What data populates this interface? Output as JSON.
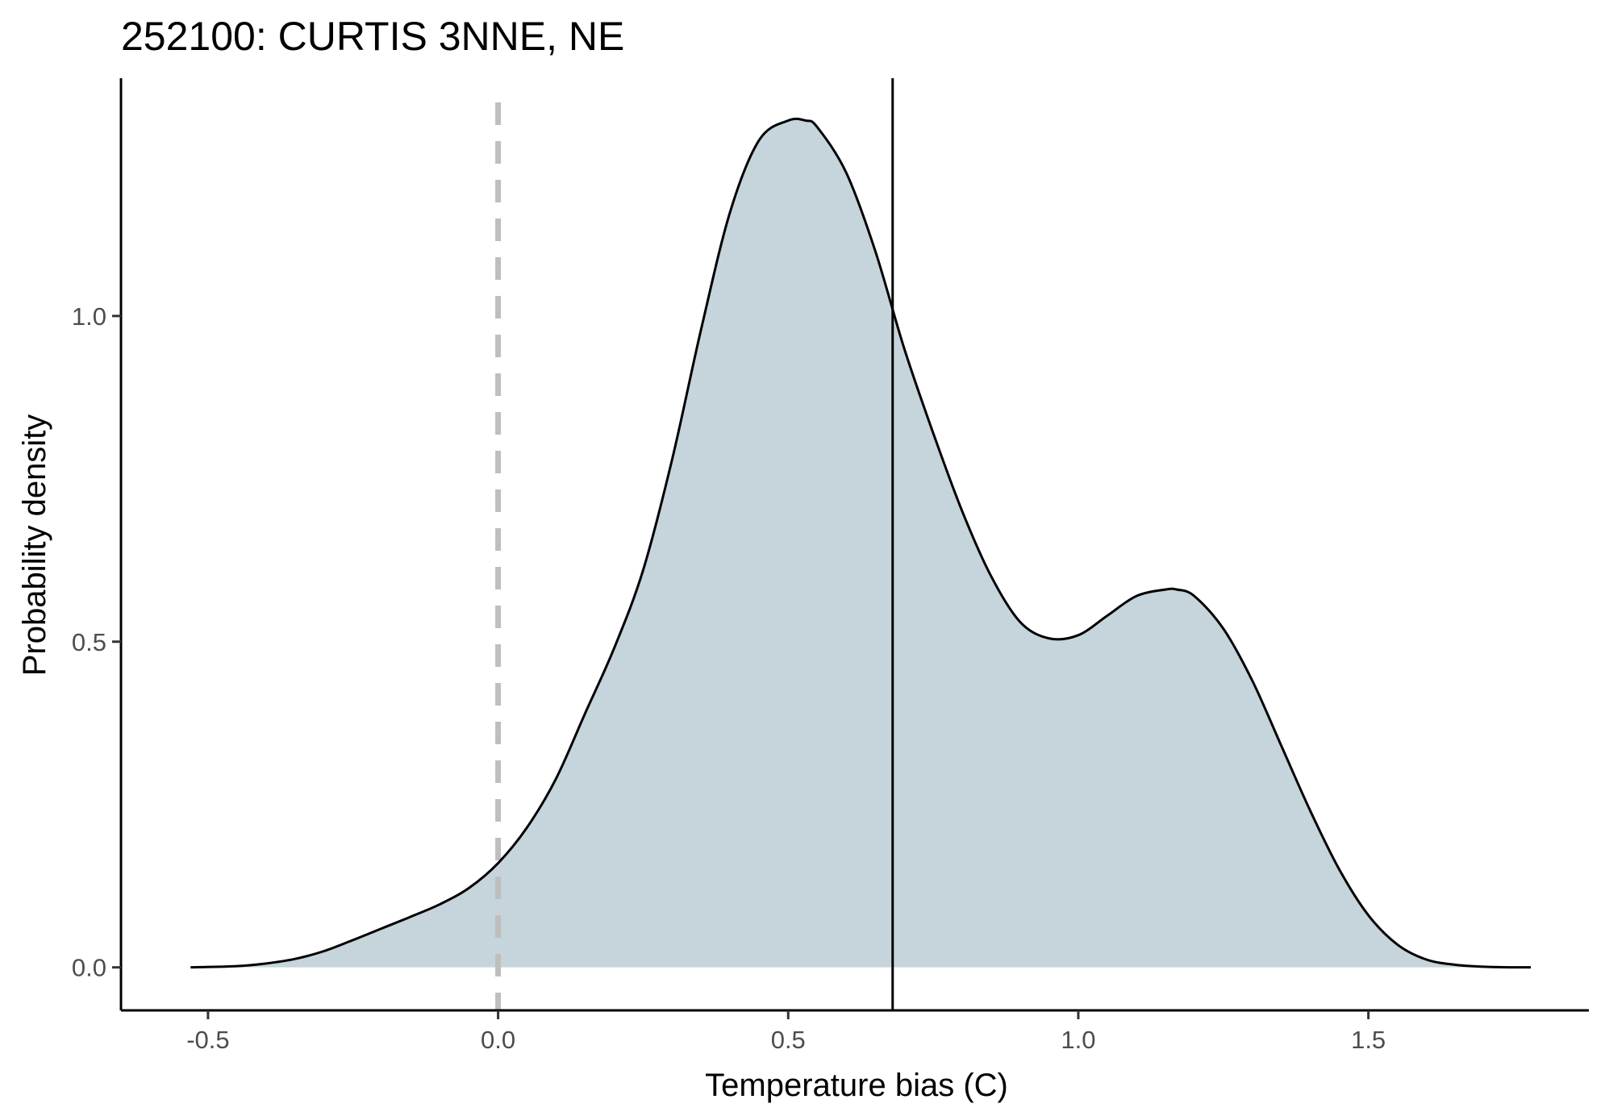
{
  "chart_data": {
    "type": "area",
    "title": "252100: CURTIS 3NNE, NE",
    "xlabel": "Temperature bias (C)",
    "ylabel": "Probability density",
    "xlim": [
      -0.65,
      1.88
    ],
    "ylim": [
      -0.066,
      1.365
    ],
    "x_ticks": [
      -0.5,
      0.0,
      0.5,
      1.0,
      1.5
    ],
    "x_tick_labels": [
      "-0.5",
      "0.0",
      "0.5",
      "1.0",
      "1.5"
    ],
    "y_ticks": [
      0.0,
      0.5,
      1.0
    ],
    "y_tick_labels": [
      "0.0",
      "0.5",
      "1.0"
    ],
    "grid": false,
    "fill_color": "#c6d4db",
    "line_color": "#000000",
    "reference_lines": [
      {
        "x": 0.0,
        "style": "dashed",
        "color": "#bebebe"
      },
      {
        "x": 0.68,
        "style": "solid",
        "color": "#000000"
      }
    ],
    "series": [
      {
        "x": [
          -0.53,
          -0.45,
          -0.4,
          -0.35,
          -0.3,
          -0.25,
          -0.2,
          -0.15,
          -0.1,
          -0.05,
          0.0,
          0.05,
          0.1,
          0.15,
          0.2,
          0.25,
          0.3,
          0.35,
          0.4,
          0.45,
          0.5,
          0.53,
          0.55,
          0.6,
          0.65,
          0.7,
          0.75,
          0.8,
          0.85,
          0.9,
          0.95,
          1.0,
          1.05,
          1.1,
          1.15,
          1.17,
          1.2,
          1.25,
          1.3,
          1.35,
          1.4,
          1.45,
          1.5,
          1.55,
          1.6,
          1.65,
          1.7,
          1.75,
          1.78
        ],
        "y": [
          0.0,
          0.002,
          0.006,
          0.013,
          0.025,
          0.042,
          0.06,
          0.078,
          0.097,
          0.122,
          0.16,
          0.215,
          0.29,
          0.39,
          0.49,
          0.61,
          0.78,
          0.98,
          1.16,
          1.27,
          1.3,
          1.3,
          1.29,
          1.22,
          1.1,
          0.95,
          0.82,
          0.7,
          0.6,
          0.53,
          0.505,
          0.51,
          0.54,
          0.57,
          0.58,
          0.58,
          0.57,
          0.52,
          0.44,
          0.34,
          0.24,
          0.15,
          0.08,
          0.035,
          0.012,
          0.004,
          0.001,
          0.0,
          0.0
        ]
      }
    ]
  }
}
